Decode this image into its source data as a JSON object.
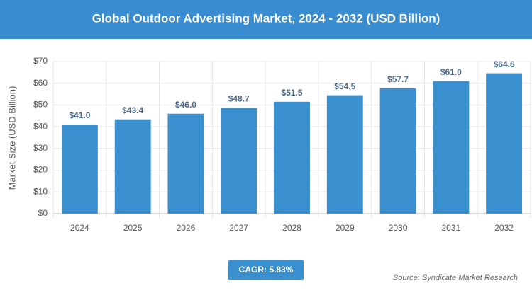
{
  "chart_data": {
    "type": "bar",
    "title": "Global Outdoor Advertising Market, 2024 - 2032 (USD Billion)",
    "ylabel": "Market Size (USD Billion)",
    "categories": [
      "2024",
      "2025",
      "2026",
      "2027",
      "2028",
      "2029",
      "2030",
      "2031",
      "2032"
    ],
    "values": [
      41.0,
      43.4,
      46.0,
      48.7,
      51.5,
      54.5,
      57.7,
      61.0,
      64.6
    ],
    "value_labels": [
      "$41.0",
      "$43.4",
      "$46.0",
      "$48.7",
      "$51.5",
      "$54.5",
      "$57.7",
      "$61.0",
      "$64.6"
    ],
    "color": "#3a8fcf",
    "ylim": [
      0,
      70
    ],
    "yticks": [
      {
        "value": 0,
        "label": "$0"
      },
      {
        "value": 10,
        "label": "$10"
      },
      {
        "value": 20,
        "label": "$20"
      },
      {
        "value": 30,
        "label": "$30"
      },
      {
        "value": 40,
        "label": "$40"
      },
      {
        "value": 50,
        "label": "$50"
      },
      {
        "value": 60,
        "label": "$60"
      },
      {
        "value": 70,
        "label": "$70"
      }
    ],
    "grid": true,
    "annotations": [
      "CAGR: 5.83%",
      "Source: Syndicate Market Research"
    ]
  }
}
